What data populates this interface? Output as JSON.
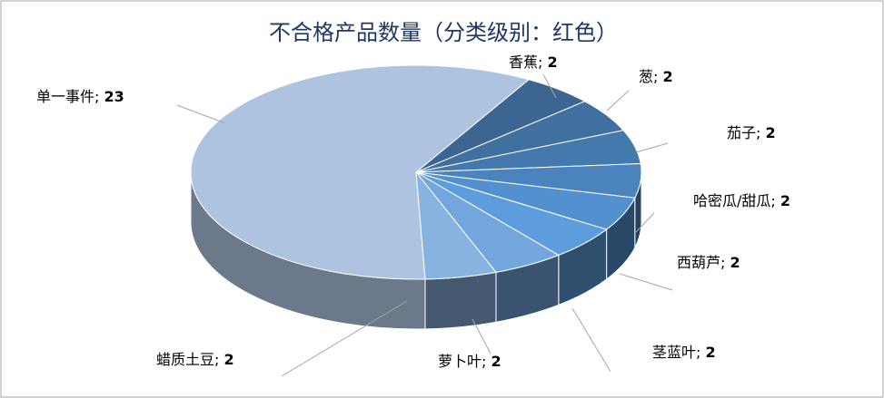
{
  "chart_data": {
    "type": "pie3d",
    "title": "不合格产品数量（分类级别：红色）",
    "label_separator": "; ",
    "categories": [
      "单一事件",
      "香蕉",
      "葱",
      "茄子",
      "哈密瓜/甜瓜",
      "西葫芦",
      "茎蓝叶",
      "萝卜叶",
      "蜡质土豆"
    ],
    "values": [
      23,
      2,
      2,
      2,
      2,
      2,
      2,
      2,
      2
    ],
    "colors": [
      "#adc3e0",
      "#3c6591",
      "#40709f",
      "#4479ad",
      "#4a83bd",
      "#5290d0",
      "#5e9ddd",
      "#73a6dc",
      "#88b2e0"
    ]
  }
}
